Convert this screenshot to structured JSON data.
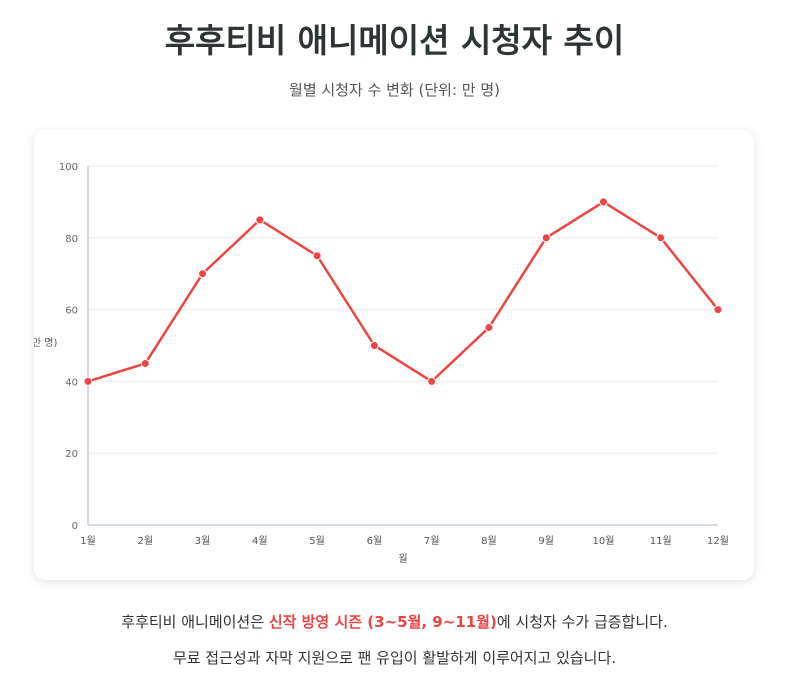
{
  "title": "후후티비 애니메이션 시청자 추이",
  "subtitle": "월별 시청자 수 변화 (단위: 만 명)",
  "footer": {
    "line1_pre": "후후티비 애니메이션은 ",
    "line1_highlight": "신작 방영 시즌 (3~5월, 9~11월)",
    "line1_post": "에 시청자 수가 급증합니다.",
    "line2": "무료 접근성과 자막 지원으로 팬 유입이 활발하게 이루어지고 있습니다."
  },
  "colors": {
    "line": "#ef4444",
    "highlight": "#e84545",
    "grid": "#eef0f4"
  },
  "chart_data": {
    "type": "line",
    "categories": [
      "1월",
      "2월",
      "3월",
      "4월",
      "5월",
      "6월",
      "7월",
      "8월",
      "9월",
      "10월",
      "11월",
      "12월"
    ],
    "values": [
      40,
      45,
      70,
      85,
      75,
      50,
      40,
      55,
      80,
      90,
      80,
      60
    ],
    "xlabel": "월",
    "ylabel": "(만 명)",
    "ylim": [
      0,
      100
    ],
    "yticks": [
      0,
      20,
      40,
      60,
      80,
      100
    ],
    "grid": true
  }
}
